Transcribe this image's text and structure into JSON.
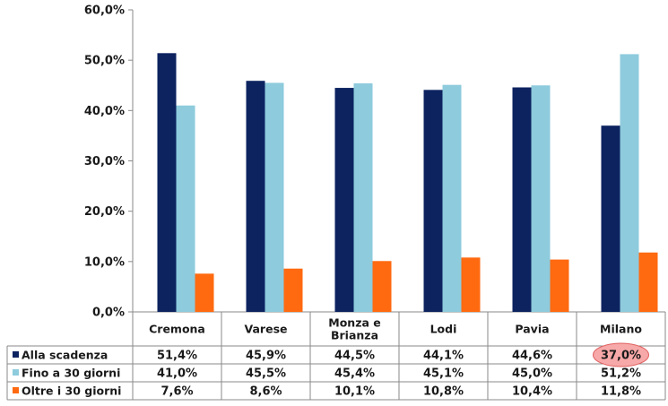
{
  "chart_data": {
    "type": "bar",
    "categories": [
      "Cremona",
      "Varese",
      "Monza e\nBrianza",
      "Lodi",
      "Pavia",
      "Milano"
    ],
    "series": [
      {
        "name": "Alla scadenza",
        "values": [
          51.4,
          45.9,
          44.5,
          44.1,
          44.6,
          37.0
        ],
        "color": "#0d2360",
        "labels": [
          "51,4%",
          "45,9%",
          "44,5%",
          "44,1%",
          "44,6%",
          "37,0%"
        ]
      },
      {
        "name": "Fino a 30 giorni",
        "values": [
          41.0,
          45.5,
          45.4,
          45.1,
          45.0,
          51.2
        ],
        "color": "#8ecbdd",
        "labels": [
          "41,0%",
          "45,5%",
          "45,4%",
          "45,1%",
          "45,0%",
          "51,2%"
        ]
      },
      {
        "name": "Oltre i 30 giorni",
        "values": [
          7.6,
          8.6,
          10.1,
          10.8,
          10.4,
          11.8
        ],
        "color": "#ff6a10",
        "labels": [
          "7,6%",
          "8,6%",
          "10,1%",
          "10,8%",
          "10,4%",
          "11,8%"
        ]
      }
    ],
    "ylim": [
      0,
      60
    ],
    "yticks": [
      "0,0%",
      "10,0%",
      "20,0%",
      "30,0%",
      "40,0%",
      "50,0%",
      "60,0%"
    ],
    "legend": "data-table-below",
    "highlight": {
      "series": 0,
      "category": 5,
      "color": "#f7a8a8"
    },
    "colors": {
      "grid_line": "#8a8a8a",
      "axis": "#8a8a8a"
    }
  }
}
